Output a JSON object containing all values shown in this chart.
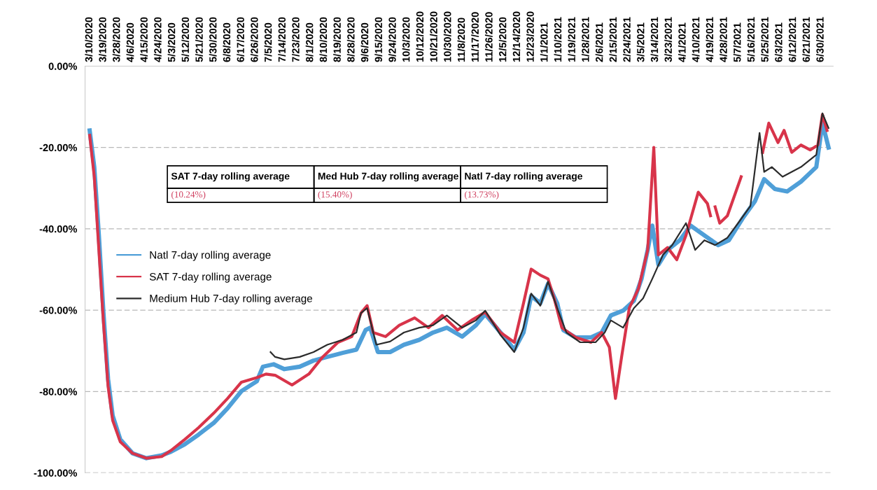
{
  "chart_data": {
    "type": "line",
    "xlim": [
      "2020-03-07",
      "2021-07-08"
    ],
    "xticks": [
      {
        "value": "2020-03-10",
        "label": "3/10/2020"
      },
      {
        "value": "2020-03-19",
        "label": "3/19/2020"
      },
      {
        "value": "2020-03-28",
        "label": "3/28/2020"
      },
      {
        "value": "2020-04-06",
        "label": "4/6/2020"
      },
      {
        "value": "2020-04-15",
        "label": "4/15/2020"
      },
      {
        "value": "2020-04-24",
        "label": "4/24/2020"
      },
      {
        "value": "2020-05-03",
        "label": "5/3/2020"
      },
      {
        "value": "2020-05-12",
        "label": "5/12/2020"
      },
      {
        "value": "2020-05-21",
        "label": "5/21/2020"
      },
      {
        "value": "2020-05-30",
        "label": "5/30/2020"
      },
      {
        "value": "2020-06-08",
        "label": "6/8/2020"
      },
      {
        "value": "2020-06-17",
        "label": "6/17/2020"
      },
      {
        "value": "2020-06-26",
        "label": "6/26/2020"
      },
      {
        "value": "2020-07-05",
        "label": "7/5/2020"
      },
      {
        "value": "2020-07-14",
        "label": "7/14/2020"
      },
      {
        "value": "2020-07-23",
        "label": "7/23/2020"
      },
      {
        "value": "2020-08-01",
        "label": "8/1/2020"
      },
      {
        "value": "2020-08-10",
        "label": "8/10/2020"
      },
      {
        "value": "2020-08-19",
        "label": "8/19/2020"
      },
      {
        "value": "2020-08-28",
        "label": "8/28/2020"
      },
      {
        "value": "2020-09-06",
        "label": "9/6/2020"
      },
      {
        "value": "2020-09-15",
        "label": "9/15/2020"
      },
      {
        "value": "2020-09-24",
        "label": "9/24/2020"
      },
      {
        "value": "2020-10-03",
        "label": "10/3/2020"
      },
      {
        "value": "2020-10-12",
        "label": "10/12/2020"
      },
      {
        "value": "2020-10-21",
        "label": "10/21/2020"
      },
      {
        "value": "2020-10-30",
        "label": "10/30/2020"
      },
      {
        "value": "2020-11-08",
        "label": "11/8/2020"
      },
      {
        "value": "2020-11-17",
        "label": "11/17/2020"
      },
      {
        "value": "2020-11-26",
        "label": "11/26/2020"
      },
      {
        "value": "2020-12-05",
        "label": "12/5/2020"
      },
      {
        "value": "2020-12-14",
        "label": "12/14/2020"
      },
      {
        "value": "2020-12-23",
        "label": "12/23/2020"
      },
      {
        "value": "2021-01-01",
        "label": "1/1/2021"
      },
      {
        "value": "2021-01-10",
        "label": "1/10/2021"
      },
      {
        "value": "2021-01-19",
        "label": "1/19/2021"
      },
      {
        "value": "2021-01-28",
        "label": "1/28/2021"
      },
      {
        "value": "2021-02-06",
        "label": "2/6/2021"
      },
      {
        "value": "2021-02-15",
        "label": "2/15/2021"
      },
      {
        "value": "2021-02-24",
        "label": "2/24/2021"
      },
      {
        "value": "2021-03-05",
        "label": "3/5/2021"
      },
      {
        "value": "2021-03-14",
        "label": "3/14/2021"
      },
      {
        "value": "2021-03-23",
        "label": "3/23/2021"
      },
      {
        "value": "2021-04-01",
        "label": "4/1/2021"
      },
      {
        "value": "2021-04-10",
        "label": "4/10/2021"
      },
      {
        "value": "2021-04-19",
        "label": "4/19/2021"
      },
      {
        "value": "2021-04-28",
        "label": "4/28/2021"
      },
      {
        "value": "2021-05-07",
        "label": "5/7/2021"
      },
      {
        "value": "2021-05-16",
        "label": "5/16/2021"
      },
      {
        "value": "2021-05-25",
        "label": "5/25/2021"
      },
      {
        "value": "2021-06-03",
        "label": "6/3/2021"
      },
      {
        "value": "2021-06-12",
        "label": "6/12/2021"
      },
      {
        "value": "2021-06-21",
        "label": "6/21/2021"
      },
      {
        "value": "2021-06-30",
        "label": "6/30/2021"
      }
    ],
    "ylim": [
      -100,
      0
    ],
    "yticks": [
      {
        "value": 0,
        "label": "0.00%"
      },
      {
        "value": -20,
        "label": "-20.00%"
      },
      {
        "value": -40,
        "label": "-40.00%"
      },
      {
        "value": -60,
        "label": "-60.00%"
      },
      {
        "value": -80,
        "label": "-80.00%"
      },
      {
        "value": -100,
        "label": "-100.00%"
      }
    ],
    "grid": "y",
    "legend": "left",
    "annotations": [
      "SAT 7-day rolling average",
      "Med Hub 7-day rolling average",
      "Natl 7-day rolling average",
      "(10.24%)",
      "(15.40%)",
      "(13.73%)"
    ],
    "series": [
      {
        "name": "Natl 7-day rolling average",
        "color": "#4f9fd8",
        "x": [
          "2020-03-10",
          "2020-03-13",
          "2020-03-16",
          "2020-03-19",
          "2020-03-22",
          "2020-03-25",
          "2020-03-30",
          "2020-04-07",
          "2020-04-16",
          "2020-04-26",
          "2020-05-02",
          "2020-05-11",
          "2020-05-20",
          "2020-05-30",
          "2020-06-08",
          "2020-06-17",
          "2020-06-27",
          "2020-07-01",
          "2020-07-08",
          "2020-07-15",
          "2020-07-25",
          "2020-08-03",
          "2020-08-12",
          "2020-08-22",
          "2020-08-31",
          "2020-09-06",
          "2020-09-09",
          "2020-09-14",
          "2020-09-22",
          "2020-10-01",
          "2020-10-11",
          "2020-10-20",
          "2020-10-29",
          "2020-11-08",
          "2020-11-17",
          "2020-11-23",
          "2020-12-03",
          "2020-12-12",
          "2020-12-18",
          "2020-12-23",
          "2020-12-29",
          "2021-01-03",
          "2021-01-09",
          "2021-01-13",
          "2021-01-21",
          "2021-01-31",
          "2021-02-07",
          "2021-02-13",
          "2021-02-21",
          "2021-02-28",
          "2021-03-05",
          "2021-03-09",
          "2021-03-12",
          "2021-03-16",
          "2021-03-22",
          "2021-03-30",
          "2021-04-06",
          "2021-04-15",
          "2021-04-24",
          "2021-05-01",
          "2021-05-10",
          "2021-05-18",
          "2021-05-24",
          "2021-05-31",
          "2021-06-08",
          "2021-06-17",
          "2021-06-27",
          "2021-07-01",
          "2021-07-05"
        ],
        "values": [
          -15.8,
          -24.8,
          -41.6,
          -60.7,
          -76.9,
          -85.9,
          -91.8,
          -95.2,
          -96.4,
          -95.7,
          -94.8,
          -93.0,
          -90.6,
          -87.7,
          -84.1,
          -79.9,
          -77.5,
          -73.9,
          -73.3,
          -74.5,
          -73.9,
          -72.4,
          -71.5,
          -70.5,
          -69.7,
          -64.9,
          -64.3,
          -70.3,
          -70.3,
          -68.5,
          -67.3,
          -65.5,
          -64.3,
          -66.5,
          -63.7,
          -61.0,
          -65.5,
          -69.7,
          -65.5,
          -56.5,
          -58.3,
          -53.5,
          -58.3,
          -64.9,
          -66.7,
          -66.7,
          -65.5,
          -61.3,
          -60.1,
          -57.7,
          -52.3,
          -45.2,
          -39.2,
          -48.8,
          -45.2,
          -42.8,
          -39.2,
          -41.6,
          -44.0,
          -42.8,
          -37.4,
          -33.2,
          -27.8,
          -30.2,
          -30.8,
          -28.4,
          -24.8,
          -14.0,
          -20.0
        ]
      },
      {
        "name": "SAT 7-day rolling average",
        "color": "#d8344a",
        "x": [
          "2020-03-10",
          "2020-03-13",
          "2020-03-16",
          "2020-03-19",
          "2020-03-22",
          "2020-03-25",
          "2020-03-30",
          "2020-04-07",
          "2020-04-16",
          "2020-04-26",
          "2020-05-02",
          "2020-05-11",
          "2020-05-20",
          "2020-05-30",
          "2020-06-08",
          "2020-06-17",
          "2020-06-27",
          "2020-07-03",
          "2020-07-09",
          "2020-07-20",
          "2020-07-31",
          "2020-08-09",
          "2020-08-19",
          "2020-08-28",
          "2020-09-03",
          "2020-09-07",
          "2020-09-11",
          "2020-09-19",
          "2020-09-28",
          "2020-10-08",
          "2020-10-17",
          "2020-10-26",
          "2020-11-05",
          "2020-11-14",
          "2020-11-23",
          "2020-12-03",
          "2020-12-12",
          "2020-12-18",
          "2020-12-23",
          "2020-12-29",
          "2021-01-03",
          "2021-01-07",
          "2021-01-12",
          "2021-01-21",
          "2021-01-31",
          "2021-02-07",
          "2021-02-12",
          "2021-02-16",
          "2021-02-20",
          "2021-02-25",
          "2021-03-03",
          "2021-03-09",
          "2021-03-13",
          "2021-03-16",
          "2021-03-22",
          "2021-03-28",
          "2021-04-03",
          "2021-04-11",
          "2021-04-17",
          "2021-04-19",
          "2021-04-20",
          "2021-04-22",
          "2021-04-25",
          "2021-04-30",
          "2021-05-09",
          "2021-05-15",
          "2021-05-23",
          "2021-05-27",
          "2021-06-02",
          "2021-06-06",
          "2021-06-11",
          "2021-06-17",
          "2021-06-23",
          "2021-06-28",
          "2021-07-01",
          "2021-07-04"
        ],
        "values": [
          -17.0,
          -27.2,
          -45.2,
          -63.1,
          -78.7,
          -87.1,
          -92.4,
          -95.2,
          -96.4,
          -96.0,
          -94.5,
          -91.8,
          -88.9,
          -85.3,
          -81.7,
          -77.7,
          -76.6,
          -75.7,
          -76.0,
          -78.4,
          -75.7,
          -71.5,
          -67.9,
          -66.5,
          -60.7,
          -58.9,
          -65.5,
          -66.5,
          -63.7,
          -61.9,
          -64.3,
          -61.3,
          -64.9,
          -62.5,
          -60.5,
          -65.5,
          -67.9,
          -58.3,
          -49.9,
          -51.4,
          -52.3,
          -57.1,
          -64.3,
          -66.7,
          -67.9,
          -65.5,
          -69.1,
          -81.7,
          -71.5,
          -59.5,
          -54.7,
          -45.2,
          -20.0,
          -46.4,
          -44.6,
          -47.6,
          -41.6,
          -31.0,
          -33.8,
          -36.8,
          null,
          -34.6,
          -38.6,
          -36.8,
          -27.2,
          null,
          -21.2,
          -14.0,
          -18.8,
          -15.8,
          -21.2,
          -19.4,
          -20.6,
          -19.4,
          -11.9,
          -15.8
        ]
      },
      {
        "name": "Medium Hub 7-day rolling average",
        "color": "#2b2b2b",
        "x": [
          "2020-07-06",
          "2020-07-09",
          "2020-07-15",
          "2020-07-25",
          "2020-08-03",
          "2020-08-12",
          "2020-08-22",
          "2020-08-31",
          "2020-09-03",
          "2020-09-07",
          "2020-09-13",
          "2020-09-22",
          "2020-10-01",
          "2020-10-11",
          "2020-10-20",
          "2020-10-29",
          "2020-11-08",
          "2020-11-17",
          "2020-11-23",
          "2020-12-03",
          "2020-12-12",
          "2020-12-18",
          "2020-12-23",
          "2020-12-29",
          "2021-01-03",
          "2021-01-09",
          "2021-01-15",
          "2021-01-24",
          "2021-02-03",
          "2021-02-09",
          "2021-02-13",
          "2021-02-21",
          "2021-02-28",
          "2021-03-06",
          "2021-03-12",
          "2021-03-19",
          "2021-03-25",
          "2021-04-03",
          "2021-04-09",
          "2021-04-15",
          "2021-04-22",
          "2021-04-30",
          "2021-05-07",
          "2021-05-15",
          "2021-05-21",
          "2021-05-24",
          "2021-05-29",
          "2021-06-05",
          "2021-06-11",
          "2021-06-17",
          "2021-06-27",
          "2021-07-01",
          "2021-07-05"
        ],
        "values": [
          -70.3,
          -71.5,
          -72.1,
          -71.5,
          -70.3,
          -68.5,
          -67.3,
          -65.5,
          -60.7,
          -59.5,
          -68.5,
          -67.7,
          -65.5,
          -64.3,
          -63.7,
          -61.3,
          -64.3,
          -62.5,
          -60.1,
          -66.1,
          -70.3,
          -64.3,
          -55.9,
          -58.9,
          -53.0,
          -59.5,
          -65.5,
          -67.9,
          -67.9,
          -65.5,
          -62.5,
          -64.3,
          -59.5,
          -57.1,
          -52.3,
          -46.4,
          -44.0,
          -38.6,
          -45.2,
          -42.8,
          -44.0,
          -42.2,
          -38.6,
          -34.4,
          -16.4,
          -26.0,
          -24.8,
          -27.2,
          -26.0,
          -24.8,
          -21.8,
          -11.6,
          -15.2
        ]
      }
    ]
  }
}
